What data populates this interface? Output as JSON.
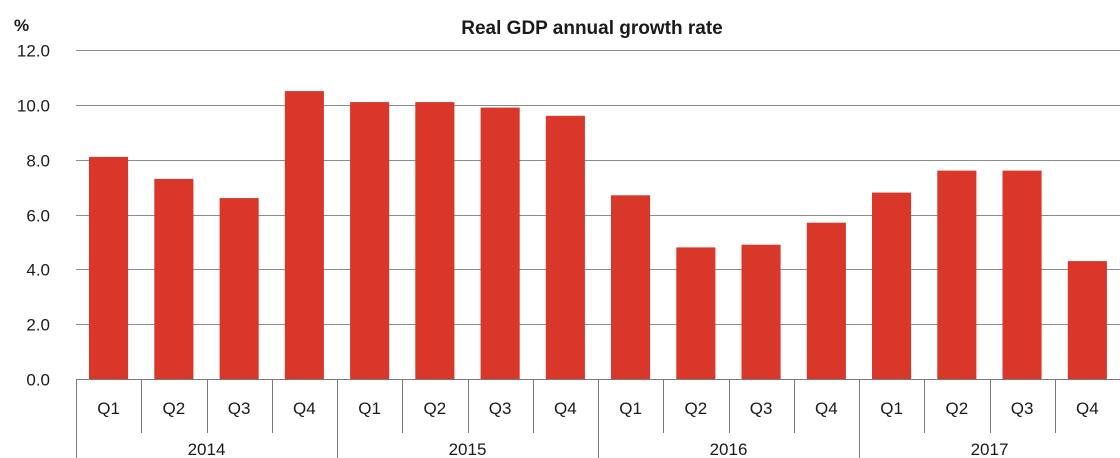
{
  "chart_data": {
    "type": "bar",
    "title": "Real GDP annual growth rate",
    "ylabel": "%",
    "ylim": [
      0,
      12
    ],
    "yticks": [
      "0.0",
      "2.0",
      "4.0",
      "6.0",
      "8.0",
      "10.0",
      "12.0"
    ],
    "groups": [
      {
        "label": "2014",
        "categories": [
          "Q1",
          "Q2",
          "Q3",
          "Q4"
        ]
      },
      {
        "label": "2015",
        "categories": [
          "Q1",
          "Q2",
          "Q3",
          "Q4"
        ]
      },
      {
        "label": "2016",
        "categories": [
          "Q1",
          "Q2",
          "Q3",
          "Q4"
        ]
      },
      {
        "label": "2017",
        "categories": [
          "Q1",
          "Q2",
          "Q3",
          "Q4"
        ]
      }
    ],
    "values": [
      8.1,
      7.3,
      6.6,
      10.5,
      10.1,
      10.1,
      9.9,
      9.6,
      6.7,
      4.8,
      4.9,
      5.7,
      6.8,
      7.6,
      7.6,
      4.3
    ],
    "bar_color": "#d9372a",
    "grid": true
  }
}
